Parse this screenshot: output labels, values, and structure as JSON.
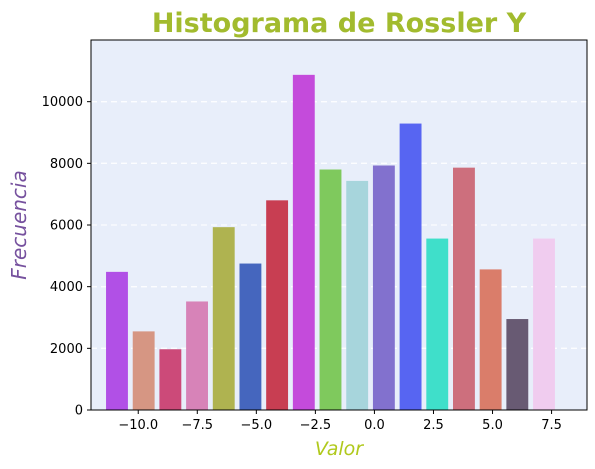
{
  "chart_data": {
    "type": "bar",
    "title": "Histograma de Rossler Y",
    "xlabel": "Valor",
    "ylabel": "Frecuencia",
    "xlim": [
      -12.0,
      9.0
    ],
    "ylim": [
      0,
      12000
    ],
    "xticks": [
      -10.0,
      -7.5,
      -5.0,
      -2.5,
      0.0,
      2.5,
      5.0,
      7.5
    ],
    "xtick_labels": [
      "−10.0",
      "−7.5",
      "−5.0",
      "−2.5",
      "0.0",
      "2.5",
      "5.0",
      "7.5"
    ],
    "yticks": [
      0,
      2000,
      4000,
      6000,
      8000,
      10000
    ],
    "ytick_labels": [
      "0",
      "2000",
      "4000",
      "6000",
      "8000",
      "10000"
    ],
    "grid": "horizontal dashed",
    "bin_width": 1.13,
    "bins": [
      {
        "x": -10.9,
        "value": 4480,
        "color": "#b150e6"
      },
      {
        "x": -9.77,
        "value": 2550,
        "color": "#d69683"
      },
      {
        "x": -8.64,
        "value": 1970,
        "color": "#cc4a79"
      },
      {
        "x": -7.51,
        "value": 3520,
        "color": "#d783b8"
      },
      {
        "x": -6.38,
        "value": 5930,
        "color": "#afb350"
      },
      {
        "x": -5.25,
        "value": 4750,
        "color": "#4566be"
      },
      {
        "x": -4.12,
        "value": 6800,
        "color": "#c83e52"
      },
      {
        "x": -2.99,
        "value": 10870,
        "color": "#c44bdb"
      },
      {
        "x": -1.86,
        "value": 7800,
        "color": "#7fc95d"
      },
      {
        "x": -0.73,
        "value": 7430,
        "color": "#a7d5dc"
      },
      {
        "x": 0.4,
        "value": 7930,
        "color": "#8271ce"
      },
      {
        "x": 1.53,
        "value": 9290,
        "color": "#5765f2"
      },
      {
        "x": 2.66,
        "value": 5560,
        "color": "#3fdfca"
      },
      {
        "x": 3.79,
        "value": 7860,
        "color": "#cd6f7d"
      },
      {
        "x": 4.92,
        "value": 4560,
        "color": "#da7d6a"
      },
      {
        "x": 6.05,
        "value": 2950,
        "color": "#685a73"
      },
      {
        "x": 7.18,
        "value": 5560,
        "color": "#f0ccef"
      }
    ],
    "colors": {
      "title": "#a2bb2e",
      "xlabel": "#b0c91c",
      "ylabel": "#76519e",
      "plot_background": "#e8eefa",
      "grid": "#ffffff"
    }
  }
}
